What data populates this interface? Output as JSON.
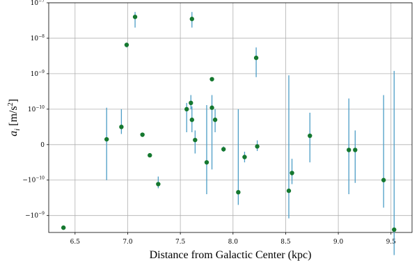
{
  "chart_data": {
    "type": "scatter",
    "xlabel": "Distance from Galactic Center (kpc)",
    "ylabel": "a",
    "ylabel_sub": "i",
    "ylabel_unit": "[m/s",
    "ylabel_unit_sup": "2",
    "ylabel_unit_end": "]",
    "xlim": [
      6.25,
      9.7
    ],
    "yscale": "symlog",
    "ylim": [
      -3e-09,
      1e-07
    ],
    "grid": true,
    "x_ticks": [
      6.5,
      7.0,
      7.5,
      8.0,
      8.5,
      9.0,
      9.5
    ],
    "x_tick_labels": [
      "6.5",
      "7.0",
      "7.5",
      "8.0",
      "8.5",
      "9.0",
      "9.5"
    ],
    "y_ticks": [
      {
        "value": 1e-07,
        "base": "10",
        "exp": "−7"
      },
      {
        "value": 1e-08,
        "base": "10",
        "exp": "−8"
      },
      {
        "value": 1e-09,
        "base": "10",
        "exp": "−9"
      },
      {
        "value": 1e-10,
        "base": "10",
        "exp": "−10"
      },
      {
        "value": 0,
        "base": "0",
        "exp": ""
      },
      {
        "value": -1e-10,
        "base": "−10",
        "exp": "−10"
      },
      {
        "value": -1e-09,
        "base": "−10",
        "exp": "−9"
      }
    ],
    "point_color": "#15782f",
    "errorbar_color": "#4c9dc6",
    "points": [
      {
        "x": 6.39,
        "y": -2.2e-09,
        "lo": -2.2e-09,
        "hi": -2.2e-09
      },
      {
        "x": 6.8,
        "y": 1.5e-11,
        "lo": -1e-10,
        "hi": 1.1e-10
      },
      {
        "x": 6.94,
        "y": 5e-11,
        "lo": 3e-11,
        "hi": 1e-10
      },
      {
        "x": 6.99,
        "y": 6.5e-09,
        "lo": 5.5e-09,
        "hi": 7.5e-09
      },
      {
        "x": 7.07,
        "y": 4e-08,
        "lo": 2e-08,
        "hi": 5.5e-08
      },
      {
        "x": 7.14,
        "y": 2.8e-11,
        "lo": 2.2e-11,
        "hi": 3.4e-11
      },
      {
        "x": 7.21,
        "y": -3e-11,
        "lo": -3e-11,
        "hi": -3e-11
      },
      {
        "x": 7.29,
        "y": -1.3e-10,
        "lo": -1.7e-10,
        "hi": -9e-11
      },
      {
        "x": 7.56,
        "y": 1e-10,
        "lo": 3.5e-11,
        "hi": 1.5e-10
      },
      {
        "x": 7.6,
        "y": 1.5e-10,
        "lo": 1e-10,
        "hi": 2.5e-10
      },
      {
        "x": 7.61,
        "y": 7e-11,
        "lo": 3.5e-11,
        "hi": 1.2e-10
      },
      {
        "x": 7.61,
        "y": 3.5e-08,
        "lo": 2e-08,
        "hi": 5.5e-08
      },
      {
        "x": 7.64,
        "y": 1.3e-11,
        "lo": -2.5e-11,
        "hi": 4e-11
      },
      {
        "x": 7.75,
        "y": -5e-11,
        "lo": -2.5e-10,
        "hi": 1.3e-10
      },
      {
        "x": 7.8,
        "y": 1.1e-10,
        "lo": -7e-11,
        "hi": 2.5e-10
      },
      {
        "x": 7.8,
        "y": 7e-10,
        "lo": 7e-10,
        "hi": 7e-10
      },
      {
        "x": 7.83,
        "y": 7e-11,
        "lo": 3.5e-11,
        "hi": 1e-10
      },
      {
        "x": 7.91,
        "y": -1.3e-11,
        "lo": -2e-11,
        "hi": -5e-12
      },
      {
        "x": 8.05,
        "y": -2.2e-10,
        "lo": -5e-10,
        "hi": 1e-10
      },
      {
        "x": 8.11,
        "y": -3.5e-11,
        "lo": -5e-11,
        "hi": -2e-11
      },
      {
        "x": 8.22,
        "y": 2.8e-09,
        "lo": 8e-10,
        "hi": 5.5e-09
      },
      {
        "x": 8.23,
        "y": -5e-12,
        "lo": -1.8e-11,
        "hi": 1.2e-11
      },
      {
        "x": 8.53,
        "y": -2e-10,
        "lo": -1.2e-09,
        "hi": 9e-10
      },
      {
        "x": 8.56,
        "y": -8e-11,
        "lo": -1.3e-10,
        "hi": -4e-11
      },
      {
        "x": 8.73,
        "y": 2.5e-11,
        "lo": -5e-11,
        "hi": 9e-11
      },
      {
        "x": 9.1,
        "y": -1.5e-11,
        "lo": -2.5e-10,
        "hi": 2e-10
      },
      {
        "x": 9.16,
        "y": -1.5e-11,
        "lo": -1.2e-10,
        "hi": 4e-11
      },
      {
        "x": 9.43,
        "y": -1e-10,
        "lo": -6e-10,
        "hi": 2.5e-10
      },
      {
        "x": 9.53,
        "y": -2.5e-09,
        "lo": -1.3e-08,
        "hi": 1.2e-09
      }
    ]
  }
}
